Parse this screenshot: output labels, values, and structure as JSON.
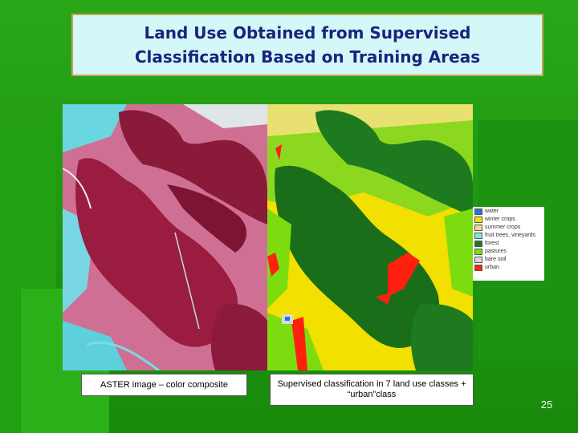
{
  "slide": {
    "title_line1": "Land Use Obtained from Supervised",
    "title_line2": "Classification Based on Training Areas",
    "page_number": "25"
  },
  "captions": {
    "left": "ASTER image – color composite",
    "right": "Supervised classification in 7 land use classes + “urban”class"
  },
  "legend": {
    "items": [
      {
        "label": "water",
        "color": "#2a6fd6"
      },
      {
        "label": "winter crops",
        "color": "#f2e000"
      },
      {
        "label": "summer crops",
        "color": "#f0d890"
      },
      {
        "label": "fruit trees, vineyards",
        "color": "#7de8d8"
      },
      {
        "label": "forest",
        "color": "#1e7a1e"
      },
      {
        "label": "pastures",
        "color": "#7ddc10"
      },
      {
        "label": "bare soil",
        "color": "#d8d8d8"
      },
      {
        "label": "urban",
        "color": "#ff2010"
      }
    ]
  },
  "colors": {
    "background": "#1f9a10",
    "title_text": "#1a237e",
    "title_box": "#d4f7f7"
  }
}
